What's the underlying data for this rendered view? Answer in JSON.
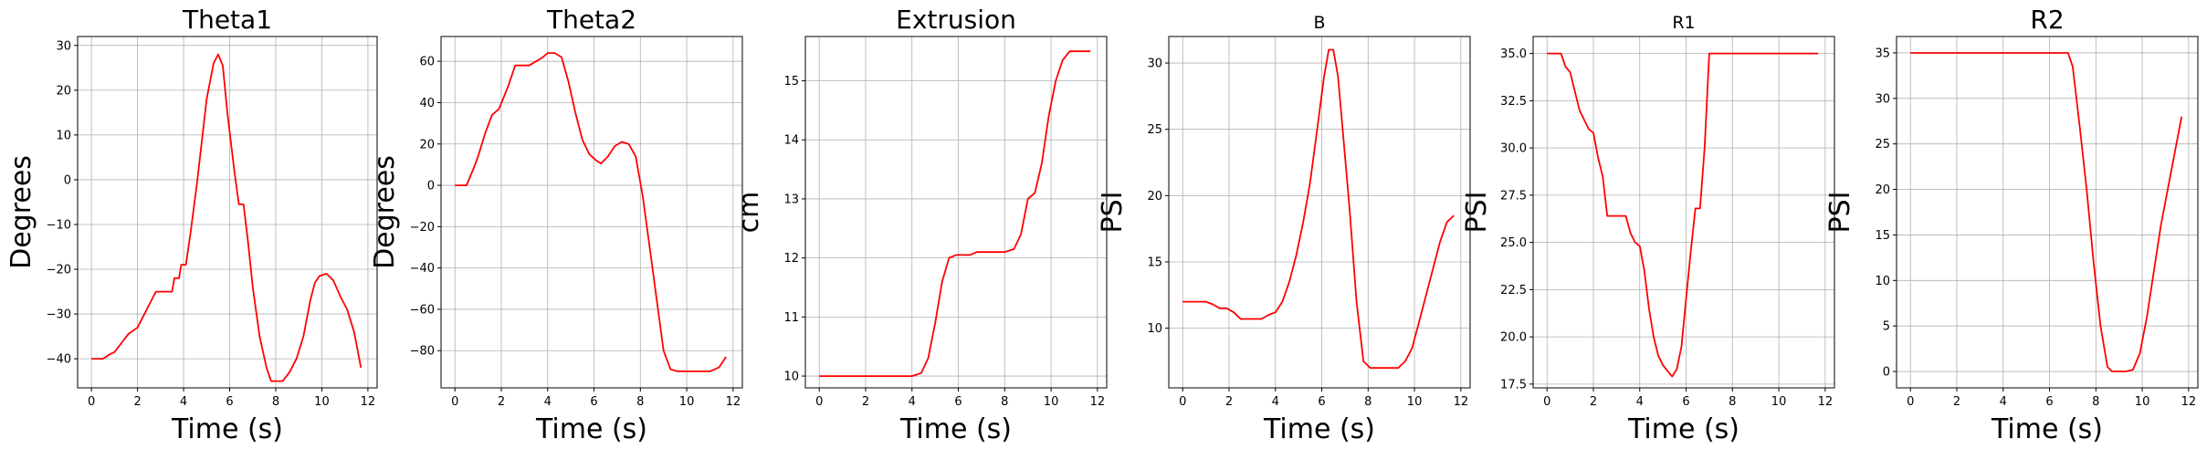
{
  "chart_data": [
    {
      "type": "line",
      "title": "Theta1",
      "xlabel": "Time (s)",
      "ylabel": "Degrees",
      "xlim": [
        -0.6,
        12.4
      ],
      "ylim": [
        -46.5,
        32
      ],
      "xticks": [
        0,
        2,
        4,
        6,
        8,
        10,
        12
      ],
      "yticks": [
        -40,
        -30,
        -20,
        -10,
        0,
        10,
        20,
        30
      ],
      "grid": true,
      "series": [
        {
          "color": "#ff0000",
          "x": [
            0,
            0.5,
            0.8,
            1.0,
            1.3,
            1.6,
            2.0,
            2.3,
            2.6,
            2.8,
            3.0,
            3.3,
            3.5,
            3.6,
            3.8,
            3.9,
            4.1,
            4.3,
            4.6,
            5.0,
            5.3,
            5.5,
            5.7,
            5.9,
            6.2,
            6.4,
            6.6,
            6.8,
            7.0,
            7.3,
            7.6,
            7.8,
            8.0,
            8.3,
            8.6,
            8.9,
            9.2,
            9.5,
            9.7,
            9.9,
            10.2,
            10.5,
            10.8,
            11.1,
            11.4,
            11.7
          ],
          "y": [
            -40,
            -40,
            -39,
            -38.5,
            -36.5,
            -34.5,
            -33,
            -30,
            -27,
            -25,
            -25,
            -25,
            -25,
            -22,
            -22,
            -19,
            -19,
            -12,
            0,
            18,
            26,
            28,
            25.5,
            15,
            2,
            -5.5,
            -5.5,
            -14,
            -24,
            -35,
            -42,
            -45,
            -45,
            -45,
            -43,
            -40,
            -35,
            -27,
            -23,
            -21.5,
            -21,
            -22.5,
            -26,
            -29,
            -34,
            -42
          ]
        }
      ]
    },
    {
      "type": "line",
      "title": "Theta2",
      "xlabel": "Time (s)",
      "ylabel": "Degrees",
      "xlim": [
        -0.6,
        12.4
      ],
      "ylim": [
        -98,
        72
      ],
      "xticks": [
        0,
        2,
        4,
        6,
        8,
        10,
        12
      ],
      "yticks": [
        -80,
        -60,
        -40,
        -20,
        0,
        20,
        40,
        60
      ],
      "grid": true,
      "series": [
        {
          "color": "#ff0000",
          "x": [
            0,
            0.5,
            0.8,
            1.0,
            1.3,
            1.6,
            1.9,
            2.3,
            2.6,
            2.9,
            3.2,
            3.5,
            3.8,
            4.0,
            4.3,
            4.6,
            4.9,
            5.2,
            5.5,
            5.8,
            6.1,
            6.3,
            6.6,
            6.9,
            7.2,
            7.5,
            7.8,
            8.1,
            8.4,
            8.7,
            9.0,
            9.3,
            9.6,
            10.0,
            10.5,
            11.0,
            11.4,
            11.7
          ],
          "y": [
            0,
            0,
            8,
            14,
            25,
            34,
            37,
            48,
            58,
            58,
            58,
            60,
            62,
            64,
            64,
            62,
            50,
            35,
            22,
            15,
            12,
            10.5,
            14,
            19,
            21,
            20,
            14,
            -5,
            -30,
            -55,
            -80,
            -89,
            -90,
            -90,
            -90,
            -90,
            -88,
            -83
          ]
        }
      ]
    },
    {
      "type": "line",
      "title": "Extrusion",
      "xlabel": "Time (s)",
      "ylabel": "cm",
      "xlim": [
        -0.6,
        12.4
      ],
      "ylim": [
        9.8,
        15.75
      ],
      "xticks": [
        0,
        2,
        4,
        6,
        8,
        10,
        12
      ],
      "yticks": [
        10,
        11,
        12,
        13,
        14,
        15
      ],
      "grid": true,
      "series": [
        {
          "color": "#ff0000",
          "x": [
            0,
            1,
            2,
            3,
            4,
            4.4,
            4.7,
            5.0,
            5.3,
            5.6,
            5.9,
            6.2,
            6.5,
            6.8,
            7.2,
            7.6,
            8.0,
            8.4,
            8.7,
            9.0,
            9.3,
            9.6,
            9.9,
            10.2,
            10.5,
            10.8,
            11.1,
            11.4,
            11.7
          ],
          "y": [
            10,
            10,
            10,
            10,
            10,
            10.05,
            10.3,
            10.9,
            11.6,
            12.0,
            12.05,
            12.05,
            12.05,
            12.1,
            12.1,
            12.1,
            12.1,
            12.15,
            12.4,
            13.0,
            13.1,
            13.6,
            14.4,
            15.0,
            15.35,
            15.5,
            15.5,
            15.5,
            15.5
          ]
        }
      ]
    },
    {
      "type": "line",
      "title": "B",
      "xlabel": "Time (s)",
      "ylabel": "PSI",
      "xlim": [
        -0.6,
        12.4
      ],
      "ylim": [
        5.5,
        32
      ],
      "xticks": [
        0,
        2,
        4,
        6,
        8,
        10,
        12
      ],
      "yticks": [
        10,
        15,
        20,
        25,
        30
      ],
      "grid": true,
      "series": [
        {
          "color": "#ff0000",
          "x": [
            0,
            0.5,
            1.0,
            1.3,
            1.6,
            1.9,
            2.2,
            2.5,
            2.8,
            3.1,
            3.4,
            3.7,
            4.0,
            4.3,
            4.6,
            4.9,
            5.2,
            5.5,
            5.8,
            6.1,
            6.3,
            6.5,
            6.7,
            6.9,
            7.2,
            7.5,
            7.8,
            8.1,
            8.4,
            8.7,
            9.0,
            9.3,
            9.6,
            9.9,
            10.2,
            10.5,
            10.8,
            11.1,
            11.4,
            11.7
          ],
          "y": [
            12,
            12,
            12,
            11.8,
            11.5,
            11.5,
            11.2,
            10.7,
            10.7,
            10.7,
            10.7,
            11.0,
            11.2,
            12.0,
            13.5,
            15.5,
            18.0,
            21.0,
            25.0,
            29.0,
            31.0,
            31.0,
            29.0,
            25.0,
            19.0,
            12.0,
            7.5,
            7.0,
            7.0,
            7.0,
            7.0,
            7.0,
            7.5,
            8.5,
            10.5,
            12.5,
            14.5,
            16.5,
            18.0,
            18.5
          ]
        }
      ]
    },
    {
      "type": "line",
      "title": "R1",
      "xlabel": "Time (s)",
      "ylabel": "PSI",
      "xlim": [
        -0.6,
        12.4
      ],
      "ylim": [
        17.3,
        35.9
      ],
      "xticks": [
        0,
        2,
        4,
        6,
        8,
        10,
        12
      ],
      "yticks": [
        17.5,
        20.0,
        22.5,
        25.0,
        27.5,
        30.0,
        32.5,
        35.0
      ],
      "grid": true,
      "series": [
        {
          "color": "#ff0000",
          "x": [
            0,
            0.4,
            0.6,
            0.8,
            1.0,
            1.2,
            1.4,
            1.6,
            1.8,
            2.0,
            2.2,
            2.4,
            2.6,
            2.8,
            3.0,
            3.2,
            3.4,
            3.6,
            3.8,
            4.0,
            4.2,
            4.4,
            4.6,
            4.8,
            5.0,
            5.2,
            5.4,
            5.6,
            5.8,
            6.0,
            6.2,
            6.4,
            6.6,
            6.8,
            7.0,
            7.2,
            8.0,
            9.0,
            10.0,
            11.0,
            11.7
          ],
          "y": [
            35,
            35,
            35,
            34.3,
            34.0,
            33.0,
            32.0,
            31.5,
            31.0,
            30.8,
            29.5,
            28.5,
            26.4,
            26.4,
            26.4,
            26.4,
            26.4,
            25.5,
            25.0,
            24.8,
            23.5,
            21.5,
            20.0,
            19.0,
            18.5,
            18.2,
            17.9,
            18.3,
            19.5,
            22.0,
            24.5,
            26.8,
            26.8,
            30.0,
            35.0,
            35.0,
            35.0,
            35.0,
            35.0,
            35.0,
            35.0
          ]
        }
      ]
    },
    {
      "type": "line",
      "title": "R2",
      "xlabel": "Time (s)",
      "ylabel": "PSI",
      "xlim": [
        -0.6,
        12.4
      ],
      "ylim": [
        -1.8,
        36.8
      ],
      "xticks": [
        0,
        2,
        4,
        6,
        8,
        10,
        12
      ],
      "yticks": [
        0,
        5,
        10,
        15,
        20,
        25,
        30,
        35
      ],
      "grid": true,
      "series": [
        {
          "color": "#ff0000",
          "x": [
            0,
            1,
            2,
            3,
            4,
            5,
            6,
            6.8,
            7.0,
            7.3,
            7.6,
            7.9,
            8.2,
            8.5,
            8.7,
            9.0,
            9.3,
            9.6,
            9.9,
            10.2,
            10.5,
            10.8,
            11.1,
            11.4,
            11.7
          ],
          "y": [
            35,
            35,
            35,
            35,
            35,
            35,
            35,
            35,
            33.5,
            27,
            20,
            12,
            5,
            0.5,
            0,
            0,
            0,
            0.2,
            2,
            6,
            11,
            16,
            20,
            24,
            28
          ]
        }
      ]
    }
  ]
}
